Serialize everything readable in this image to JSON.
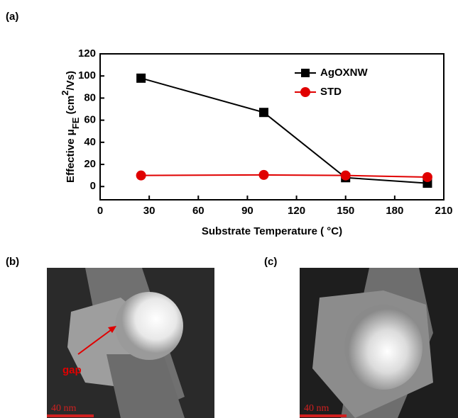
{
  "chart_data": {
    "type": "line",
    "panel_label": "(a)",
    "xlabel": "Substrate Temperature ( °C)",
    "ylabel": [
      "Effective μ",
      "FE",
      " (cm",
      "2",
      "/Vs)"
    ],
    "x": [
      25,
      100,
      150,
      200
    ],
    "series": [
      {
        "name": "AgOXNW",
        "color": "#000000",
        "marker": "square",
        "values": [
          98,
          67,
          8,
          3
        ]
      },
      {
        "name": "STD",
        "color": "#e00000",
        "marker": "circle",
        "values": [
          10,
          10.5,
          10,
          8.5
        ]
      }
    ],
    "xlim": [
      0,
      210
    ],
    "xticks": [
      0,
      30,
      60,
      90,
      120,
      150,
      180,
      210
    ],
    "ylim": [
      -12,
      120
    ],
    "yticks": [
      0,
      20,
      40,
      60,
      80,
      100,
      120
    ],
    "legend": "upper right"
  },
  "panels": [
    {
      "label": "(b)",
      "annotation": "gap",
      "scale_bar": "40 nm"
    },
    {
      "label": "(c)",
      "scale_bar": "40 nm"
    }
  ]
}
